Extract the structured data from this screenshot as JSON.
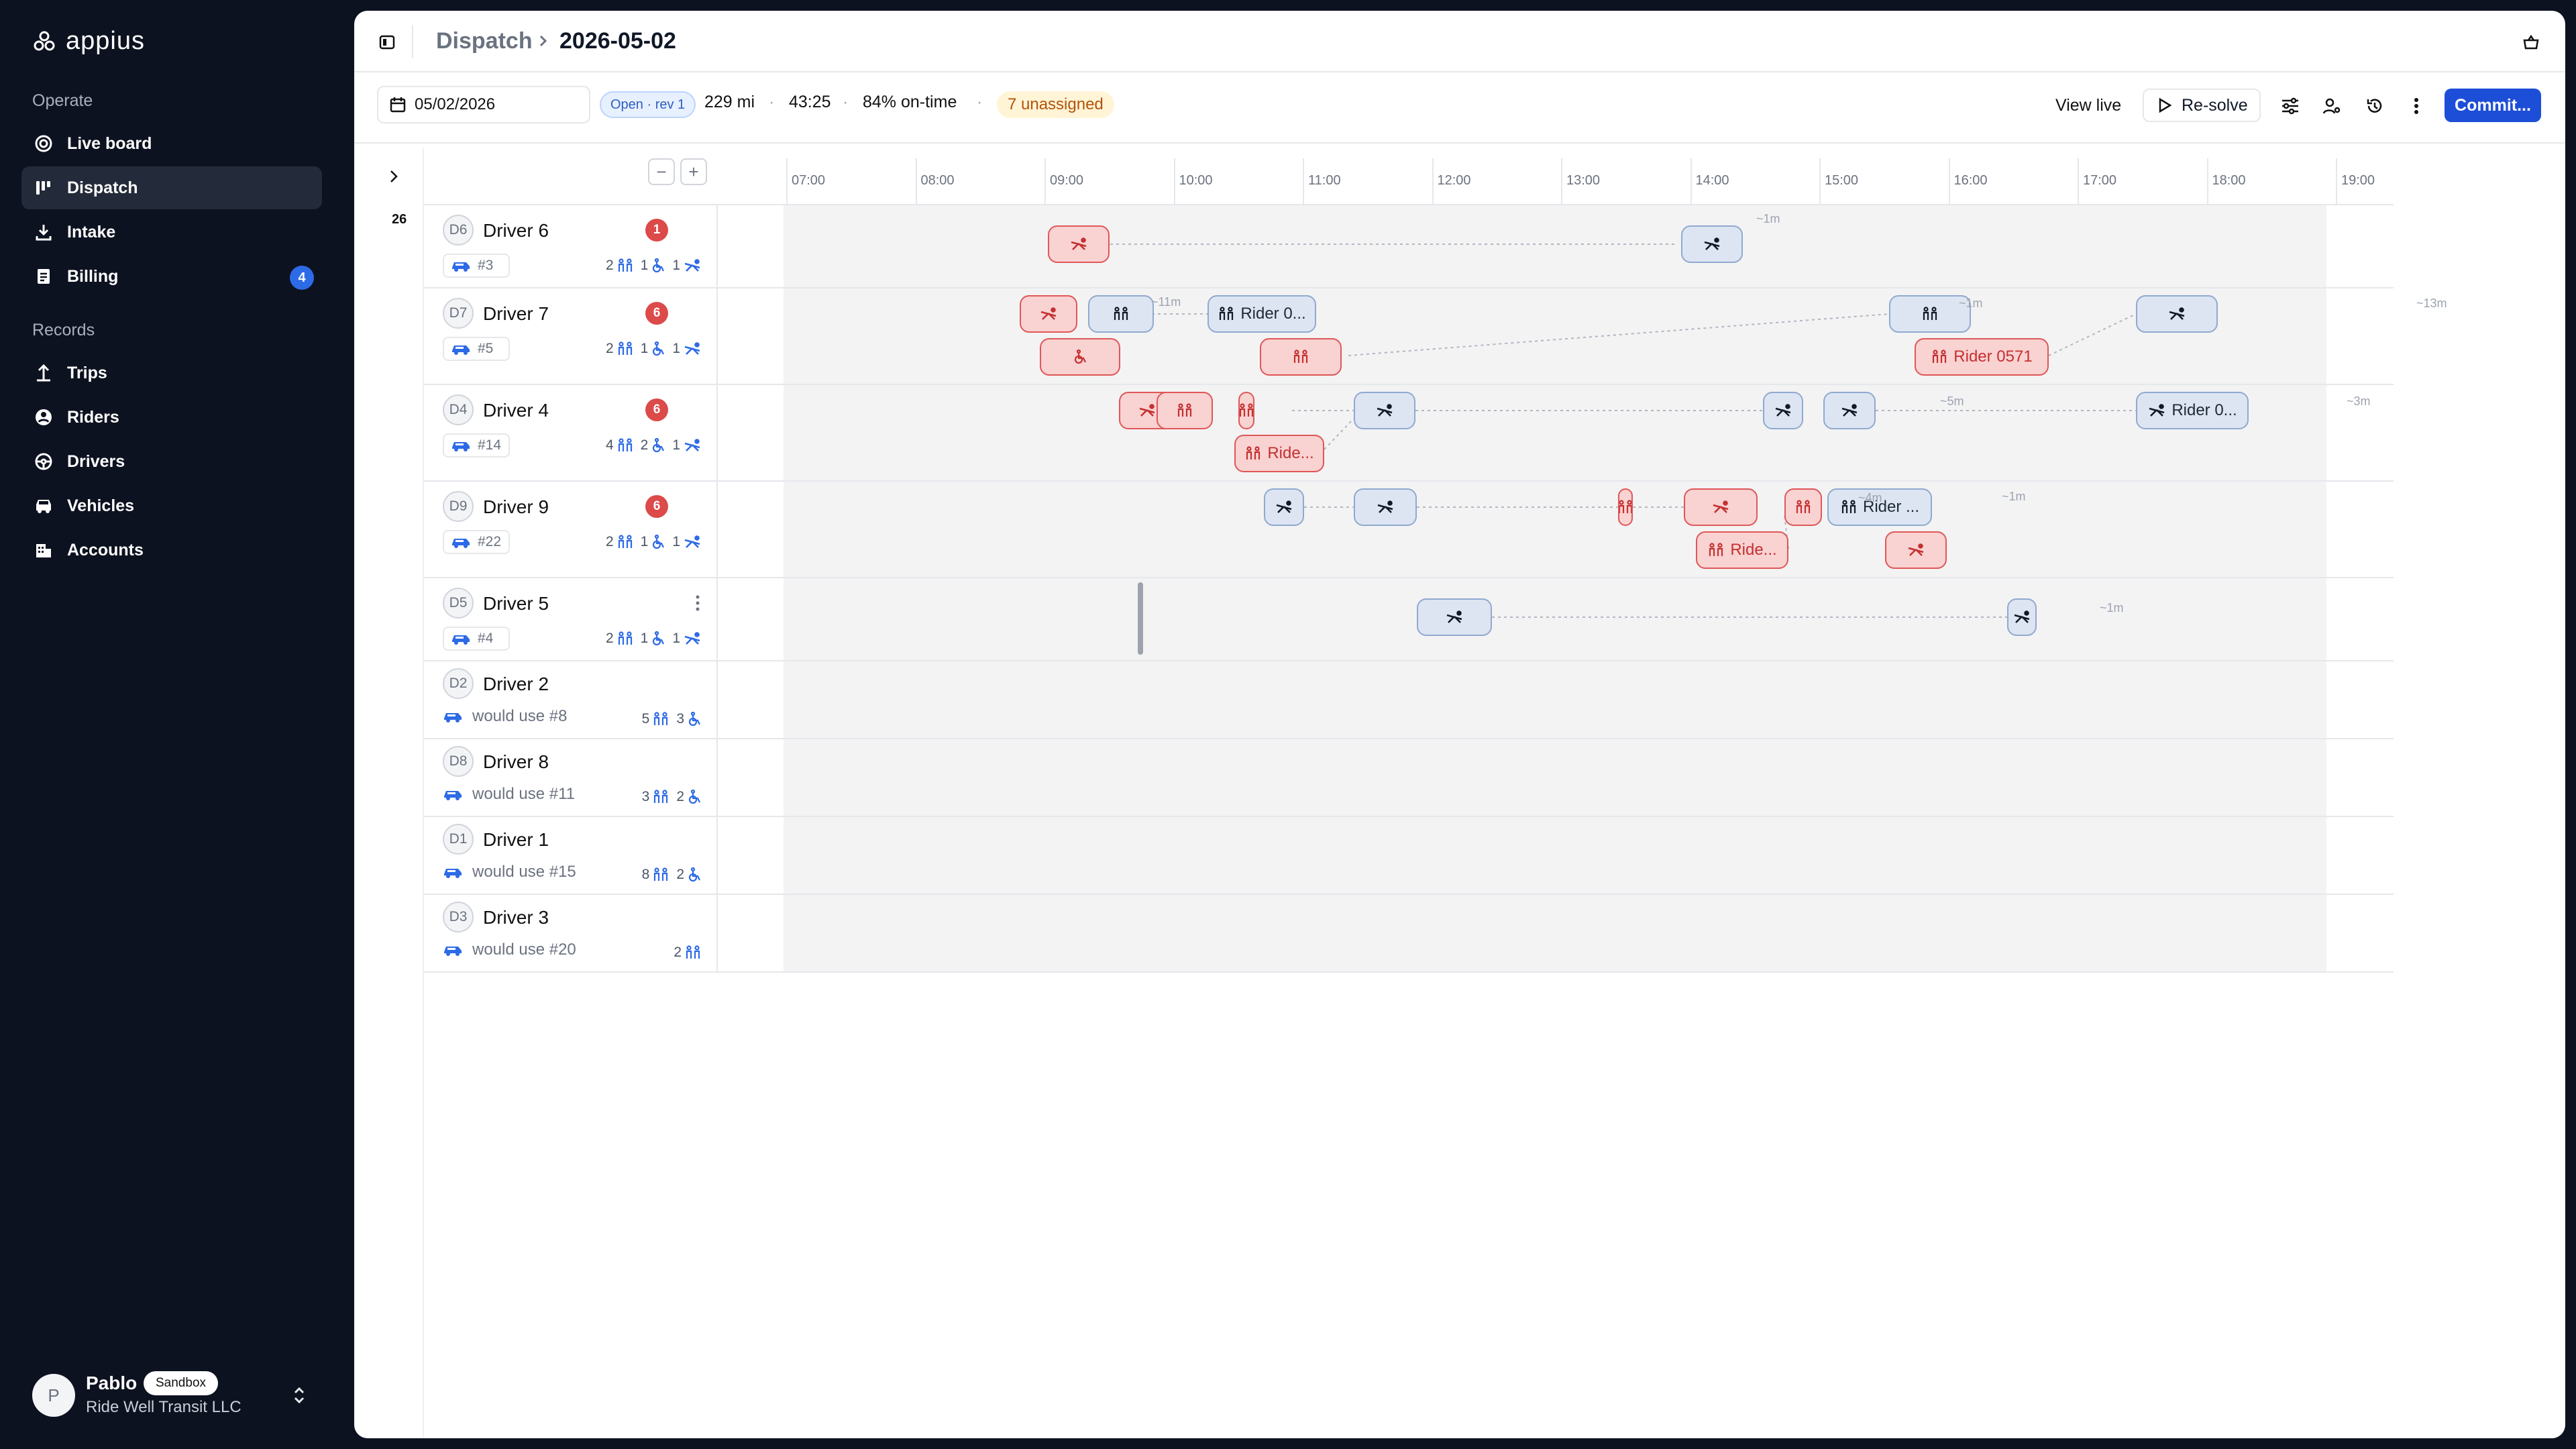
{
  "sidebar": {
    "brand": "appius",
    "sections": [
      {
        "title": "Operate",
        "items": [
          {
            "label": "Live board",
            "icon": "live-board-icon"
          },
          {
            "label": "Dispatch",
            "icon": "dispatch-icon",
            "active": true
          },
          {
            "label": "Intake",
            "icon": "intake-icon"
          },
          {
            "label": "Billing",
            "icon": "billing-icon",
            "badge": "4"
          }
        ]
      },
      {
        "title": "Records",
        "items": [
          {
            "label": "Trips",
            "icon": "trips-icon"
          },
          {
            "label": "Riders",
            "icon": "riders-icon"
          },
          {
            "label": "Drivers",
            "icon": "drivers-icon"
          },
          {
            "label": "Vehicles",
            "icon": "vehicles-icon"
          },
          {
            "label": "Accounts",
            "icon": "accounts-icon"
          }
        ]
      }
    ],
    "user": {
      "initial": "P",
      "name": "Pablo",
      "badge": "Sandbox",
      "org": "Ride Well Transit LLC"
    }
  },
  "header": {
    "breadcrumb_parent": "Dispatch",
    "breadcrumb_current": "2026-05-02"
  },
  "toolbar": {
    "date": "05/02/2026",
    "plan_status": "Open · rev 1",
    "miles": "229 mi",
    "duration": "43:25",
    "on_time": "84% on-time",
    "unassigned": "7 unassigned",
    "view_live": "View live",
    "resolve": "Re-solve",
    "commit": "Commit..."
  },
  "timeline": {
    "count": "26",
    "hours": [
      "07:00",
      "08:00",
      "09:00",
      "10:00",
      "11:00",
      "12:00",
      "13:00",
      "14:00",
      "15:00",
      "16:00",
      "17:00",
      "18:00",
      "19:00"
    ]
  },
  "colors": {
    "brand_blue": "#1d4ed8",
    "alert_red": "#dc4a4a",
    "trip_blue": "#dde5f2",
    "trip_red": "#f9d2d2",
    "warning_amber": "#b45309"
  },
  "drivers": [
    {
      "code": "D6",
      "name": "Driver 6",
      "badge": "1",
      "vehicle": "#3",
      "ambulatory": "2",
      "wheelchair": "1",
      "stretcher": "1"
    },
    {
      "code": "D7",
      "name": "Driver 7",
      "badge": "6",
      "vehicle": "#5",
      "ambulatory": "2",
      "wheelchair": "1",
      "stretcher": "1"
    },
    {
      "code": "D4",
      "name": "Driver 4",
      "badge": "6",
      "vehicle": "#14",
      "ambulatory": "4",
      "wheelchair": "2",
      "stretcher": "1"
    },
    {
      "code": "D9",
      "name": "Driver 9",
      "badge": "6",
      "vehicle": "#22",
      "ambulatory": "2",
      "wheelchair": "1",
      "stretcher": "1"
    },
    {
      "code": "D5",
      "name": "Driver 5",
      "vehicle": "#4",
      "ambulatory": "2",
      "wheelchair": "1",
      "stretcher": "1"
    },
    {
      "code": "D2",
      "name": "Driver 2",
      "would_use": "would use #8",
      "ambulatory": "5",
      "wheelchair": "3"
    },
    {
      "code": "D8",
      "name": "Driver 8",
      "would_use": "would use #11",
      "ambulatory": "3",
      "wheelchair": "2"
    },
    {
      "code": "D1",
      "name": "Driver 1",
      "would_use": "would use #15",
      "ambulatory": "8",
      "wheelchair": "2"
    },
    {
      "code": "D3",
      "name": "Driver 3",
      "would_use": "would use #20",
      "ambulatory": "2"
    }
  ],
  "trips": {
    "gaps": {
      "d6_a": "~1m",
      "d7_a": "~11m",
      "d7_b": "~1m",
      "d7_c": "~13m",
      "d4_a": "~5m",
      "d4_b": "~3m",
      "d9_a": "~4m",
      "d9_b": "~1m",
      "d5_a": "~1m"
    },
    "labels": {
      "d7_rider_a": "Rider 0...",
      "d7_rider_b": "Rider 0571",
      "d4_ride": "Ride...",
      "d4_rider": "Rider 0...",
      "d9_rider": "Rider ...",
      "d9_ride": "Ride..."
    }
  }
}
